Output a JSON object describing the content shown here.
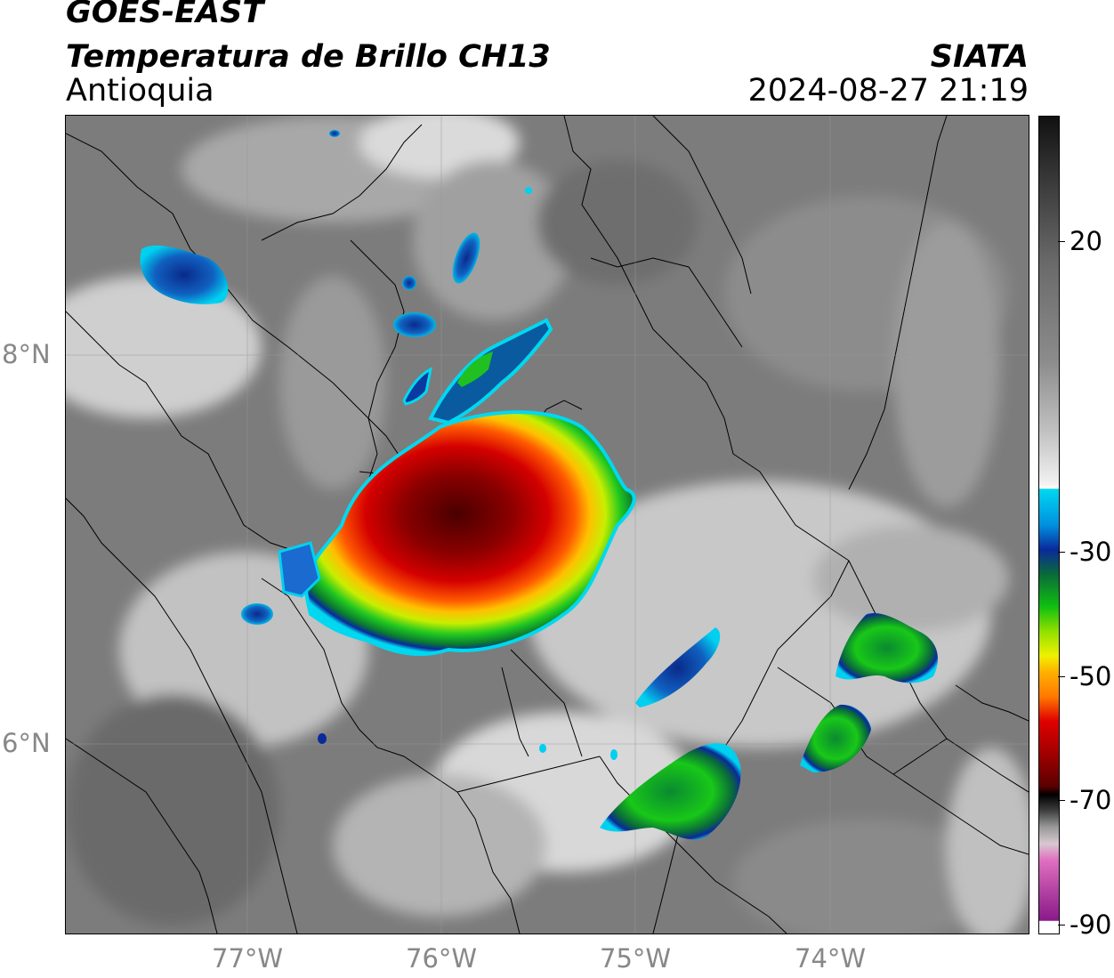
{
  "header": {
    "satellite": "GOES-EAST",
    "product": "Temperatura de Brillo CH13",
    "region": "Antioquia",
    "agency": "SIATA",
    "timestamp": "2024-08-27 21:19"
  },
  "map": {
    "lon_ticks": [
      {
        "lon": -77,
        "label": "77°W"
      },
      {
        "lon": -76,
        "label": "76°W"
      },
      {
        "lon": -75,
        "label": "75°W"
      },
      {
        "lon": -74,
        "label": "74°W"
      }
    ],
    "lat_ticks": [
      {
        "lat": 8,
        "label": "8°N"
      },
      {
        "lat": 6,
        "label": "6°N"
      }
    ],
    "extent": {
      "lon_min": -77.94,
      "lon_max": -72.98,
      "lat_min": 4.94,
      "lat_max": 9.22
    },
    "cloud_cells": [
      {
        "name": "main-convective-system",
        "lon": -75.9,
        "lat": 7.05,
        "min_temp_c": -70
      },
      {
        "name": "cell-southeast-small",
        "lon": -74.0,
        "lat": 6.05,
        "min_temp_c": -45
      },
      {
        "name": "cell-east-upper",
        "lon": -73.8,
        "lat": 6.5,
        "min_temp_c": -45
      },
      {
        "name": "cell-south",
        "lon": -74.8,
        "lat": 5.75,
        "min_temp_c": -45
      },
      {
        "name": "cell-northwest",
        "lon": -77.45,
        "lat": 8.4,
        "min_temp_c": -35
      }
    ]
  },
  "colorbar": {
    "unit_hint": "°C",
    "ticks": [
      {
        "value": 20,
        "label": "20"
      },
      {
        "value": -30,
        "label": "-30"
      },
      {
        "value": -50,
        "label": "-50"
      },
      {
        "value": -70,
        "label": "-70"
      },
      {
        "value": -90,
        "label": "-90"
      }
    ],
    "range": [
      -90,
      35
    ],
    "colors": {
      "warm_top": "#111111",
      "mid_gray": "#8c8c8c",
      "light_gray": "#f2f2f2",
      "cyan": "#00d8f0",
      "blue": "#0a2a9a",
      "green": "#10c010",
      "yellow": "#f0f000",
      "orange": "#ff7a00",
      "red": "#e00000",
      "dark_red": "#5a0000",
      "pink": "#e070c0",
      "purple": "#8a1a8a"
    }
  }
}
